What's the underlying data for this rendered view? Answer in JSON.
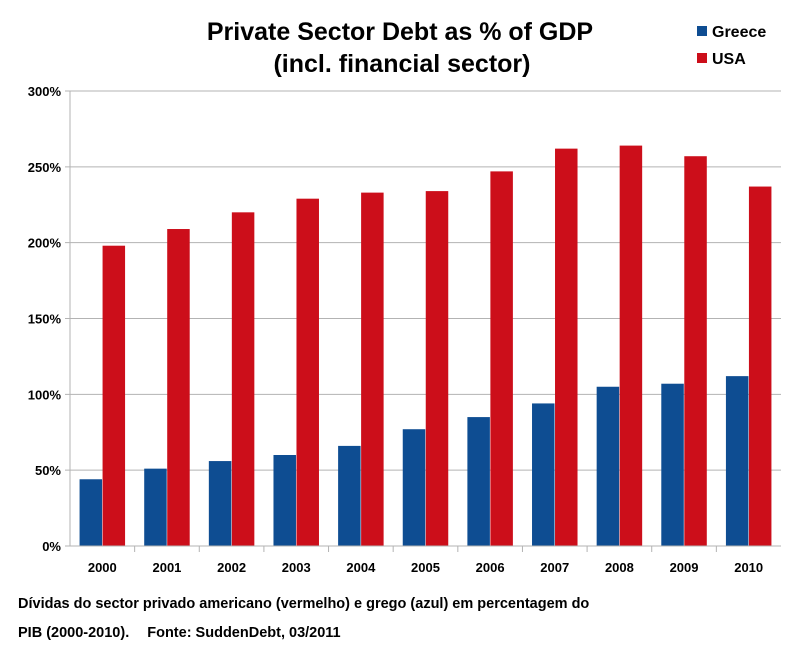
{
  "chart_data": {
    "type": "bar",
    "title": "Private Sector Debt as % of GDP",
    "subtitle": "(incl. financial sector)",
    "categories": [
      "2000",
      "2001",
      "2002",
      "2003",
      "2004",
      "2005",
      "2006",
      "2007",
      "2008",
      "2009",
      "2010"
    ],
    "series": [
      {
        "name": "Greece",
        "color": "#0e4d92",
        "values": [
          44,
          51,
          56,
          60,
          66,
          77,
          85,
          94,
          105,
          107,
          112
        ]
      },
      {
        "name": "USA",
        "color": "#cc0e1a",
        "values": [
          198,
          209,
          220,
          229,
          233,
          234,
          247,
          262,
          264,
          257,
          237
        ]
      }
    ],
    "yticks": [
      "0%",
      "50%",
      "100%",
      "150%",
      "200%",
      "250%",
      "300%"
    ],
    "ylim": [
      0,
      300
    ],
    "grid": true,
    "legend": "top-right",
    "xlabel": "",
    "ylabel": ""
  },
  "caption": {
    "line1": "Dívidas do sector privado americano (vermelho) e   grego (azul) em percentagem  do",
    "line2": "PIB (2000-2010).",
    "source": "Fonte: SuddenDebt, 03/2011"
  }
}
